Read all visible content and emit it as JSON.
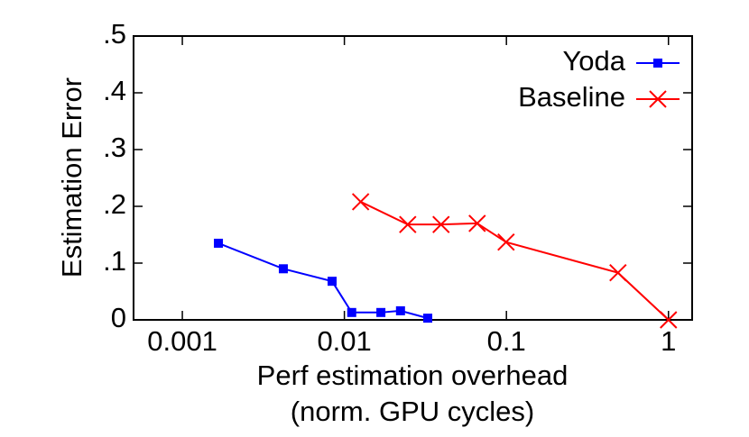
{
  "chart_data": {
    "type": "line",
    "xscale": "log",
    "ylabel": "Estimation Error",
    "xlabel": [
      "Perf estimation overhead",
      "(norm. GPU cycles)"
    ],
    "xlim": [
      0.0005,
      1.4
    ],
    "xticks": [
      0.001,
      0.01,
      0.1,
      1
    ],
    "ylim": [
      0,
      0.5
    ],
    "yticks": [
      {
        "value": 0,
        "label": "0"
      },
      {
        "value": 0.1,
        "label": ".1"
      },
      {
        "value": 0.2,
        "label": ".2"
      },
      {
        "value": 0.3,
        "label": ".3"
      },
      {
        "value": 0.4,
        "label": ".4"
      },
      {
        "value": 0.5,
        "label": ".5"
      }
    ],
    "legend": "top-right",
    "series": [
      {
        "name": "Yoda",
        "color": "#0000ff",
        "marker": "square",
        "x": [
          0.00167,
          0.0042,
          0.0084,
          0.0111,
          0.0168,
          0.0222,
          0.0327
        ],
        "values": [
          0.135,
          0.09,
          0.068,
          0.013,
          0.013,
          0.016,
          0.003
        ]
      },
      {
        "name": "Baseline",
        "color": "#ff0000",
        "marker": "cross",
        "x": [
          0.0126,
          0.0246,
          0.0395,
          0.066,
          0.0995,
          0.488,
          1
        ],
        "values": [
          0.208,
          0.168,
          0.168,
          0.17,
          0.137,
          0.083,
          0
        ]
      }
    ]
  }
}
